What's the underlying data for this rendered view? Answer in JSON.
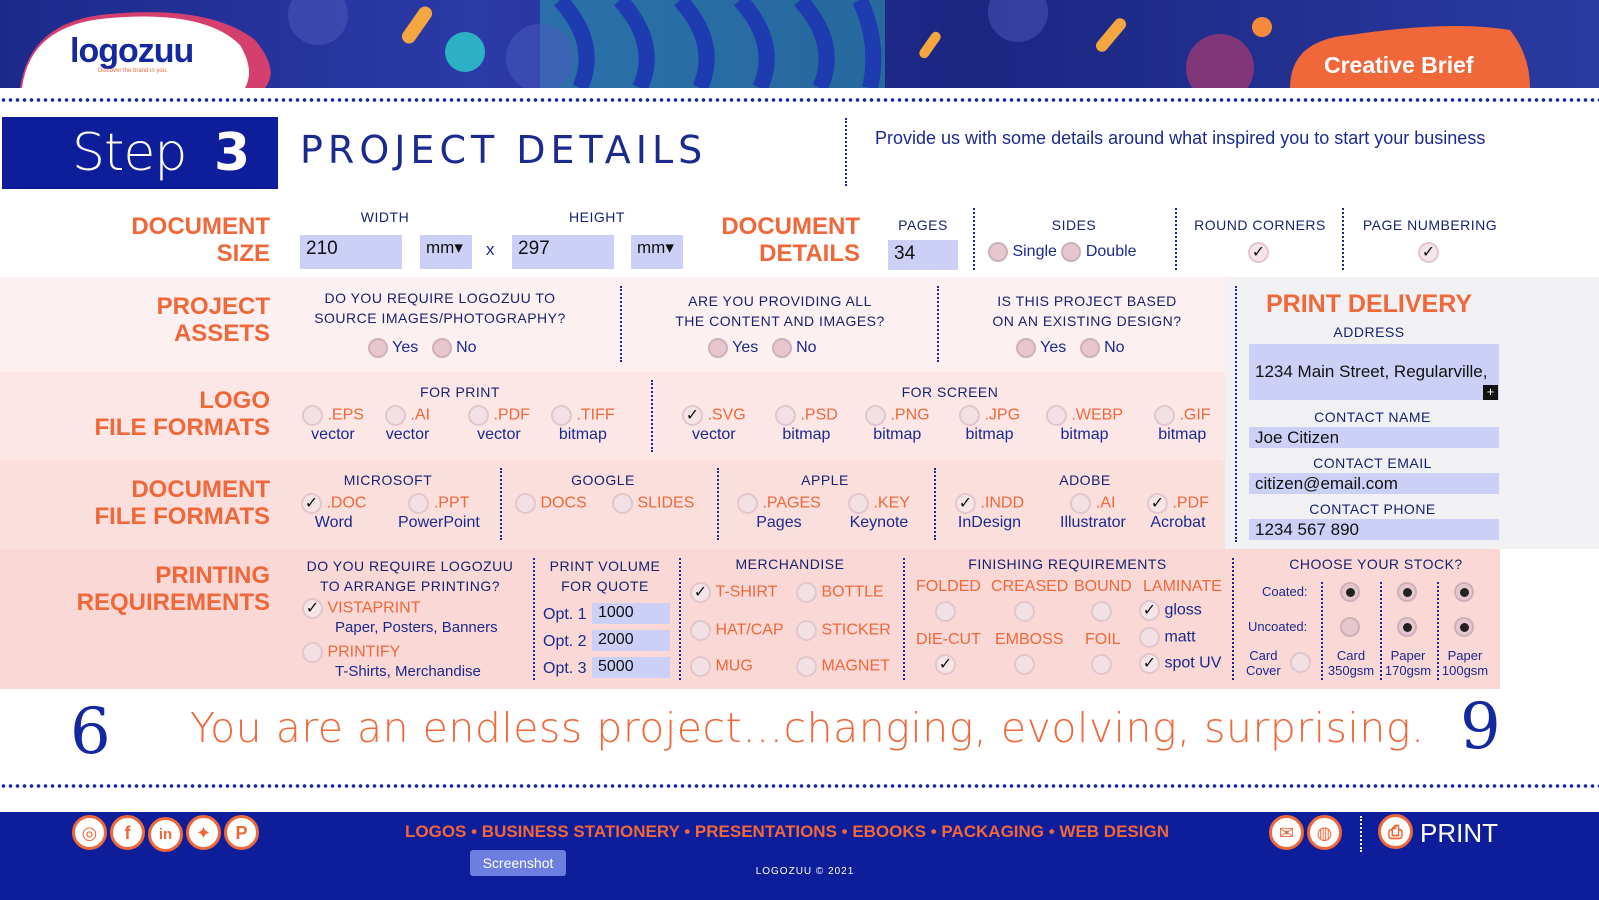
{
  "brand": {
    "name": "logozuu",
    "tagline": "Discover the brand in you.",
    "badge": "Creative Brief"
  },
  "step": {
    "word": "Step",
    "num": "3",
    "title": "PROJECT DETAILS",
    "desc": "Provide us with some details around what inspired you to start your business"
  },
  "docsize": {
    "l1": "DOCUMENT",
    "l2": "SIZE",
    "width_label": "WIDTH",
    "height_label": "HEIGHT",
    "width": "210",
    "height": "297",
    "unit": "mm",
    "x": "x"
  },
  "docdetails": {
    "l1": "DOCUMENT",
    "l2": "DETAILS",
    "pages_label": "PAGES",
    "pages": "34",
    "sides_label": "SIDES",
    "single": "Single",
    "double": "Double",
    "round_label": "ROUND CORNERS",
    "numbering_label": "PAGE NUMBERING",
    "check": "✓"
  },
  "assets": {
    "l1": "PROJECT",
    "l2": "ASSETS",
    "q1a": "DO YOU REQUIRE LOGOZUU TO",
    "q1b": "SOURCE IMAGES/PHOTOGRAPHY?",
    "q2a": "ARE YOU PROVIDING ALL",
    "q2b": "THE CONTENT AND IMAGES?",
    "q3a": "IS THIS PROJECT BASED",
    "q3b": "ON AN EXISTING DESIGN?",
    "yes": "Yes",
    "no": "No"
  },
  "logo": {
    "l1": "LOGO",
    "l2": "FILE FORMATS",
    "print": "FOR PRINT",
    "screen": "FOR SCREEN",
    "print_items": [
      {
        "t": ".EPS",
        "s": "vector"
      },
      {
        "t": ".AI",
        "s": "vector"
      },
      {
        "t": ".PDF",
        "s": "vector"
      },
      {
        "t": ".TIFF",
        "s": "bitmap"
      }
    ],
    "screen_items": [
      {
        "t": ".SVG",
        "s": "vector"
      },
      {
        "t": ".PSD",
        "s": "bitmap"
      },
      {
        "t": ".PNG",
        "s": "bitmap"
      },
      {
        "t": ".JPG",
        "s": "bitmap"
      },
      {
        "t": ".WEBP",
        "s": "bitmap"
      },
      {
        "t": ".GIF",
        "s": "bitmap"
      }
    ]
  },
  "docfmt": {
    "l1": "DOCUMENT",
    "l2": "FILE FORMATS",
    "ms": "MICROSOFT",
    "google": "GOOGLE",
    "apple": "APPLE",
    "adobe": "ADOBE",
    "items": [
      {
        "t": ".DOC",
        "s": "Word"
      },
      {
        "t": ".PPT",
        "s": "PowerPoint"
      },
      {
        "t": "DOCS",
        "s": ""
      },
      {
        "t": "SLIDES",
        "s": ""
      },
      {
        "t": ".PAGES",
        "s": "Pages"
      },
      {
        "t": ".KEY",
        "s": "Keynote"
      },
      {
        "t": ".INDD",
        "s": "InDesign"
      },
      {
        "t": ".AI",
        "s": "Illustrator"
      },
      {
        "t": ".PDF",
        "s": "Acrobat"
      }
    ]
  },
  "delivery": {
    "title": "PRINT DELIVERY",
    "address_label": "ADDRESS",
    "address": "1234 Main Street, Regularville,",
    "name_label": "CONTACT NAME",
    "name": "Joe Citizen",
    "email_label": "CONTACT EMAIL",
    "email": "citizen@email.com",
    "phone_label": "CONTACT PHONE",
    "phone": "1234 567 890",
    "expand": "+"
  },
  "printing": {
    "l1": "PRINTING",
    "l2": "REQUIREMENTS",
    "qa": "DO YOU REQUIRE LOGOZUU",
    "qb": "TO ARRANGE PRINTING?",
    "vista": "VISTAPRINT",
    "vista_sub": "Paper, Posters, Banners",
    "printify": "PRINTIFY",
    "printify_sub": "T-Shirts, Merchandise",
    "vol_a": "PRINT VOLUME",
    "vol_b": "FOR QUOTE",
    "opt1": "Opt. 1",
    "opt2": "Opt. 2",
    "opt3": "Opt. 3",
    "v1": "1000",
    "v2": "2000",
    "v3": "5000",
    "merch": "MERCHANDISE",
    "tshirt": "T-SHIRT",
    "bottle": "BOTTLE",
    "hatcap": "HAT/CAP",
    "sticker": "STICKER",
    "mug": "MUG",
    "magnet": "MAGNET",
    "finish": "FINISHING REQUIREMENTS",
    "folded": "FOLDED",
    "creased": "CREASED",
    "bound": "BOUND",
    "laminate": "LAMINATE",
    "diecut": "DIE-CUT",
    "emboss": "EMBOSS",
    "foil": "FOIL",
    "gloss": "gloss",
    "matt": "matt",
    "spotuv": "spot UV",
    "stock": "CHOOSE YOUR STOCK?",
    "coated": "Coated:",
    "uncoated": "Uncoated:",
    "cc1": "Card",
    "cc2": "Cover",
    "c350a": "Card",
    "c350b": "350gsm",
    "p170a": "Paper",
    "p170b": "170gsm",
    "p100a": "Paper",
    "p100b": "100gsm"
  },
  "quote": "You are an endless project…changing, evolving, surprising.",
  "footer": {
    "links": "LOGOS • BUSINESS STATIONERY • PRESENTATIONS • EBOOKS • PACKAGING • WEB DESIGN",
    "copyright": "LOGOZUU © 2021",
    "print": "PRINT",
    "tooltip": "Screenshot"
  },
  "colors": {
    "navy": "#0e1d99",
    "orange": "#f0673a",
    "band1": "#fdf0f0",
    "band2": "#fbe4e3",
    "band3": "#fad6d3"
  }
}
